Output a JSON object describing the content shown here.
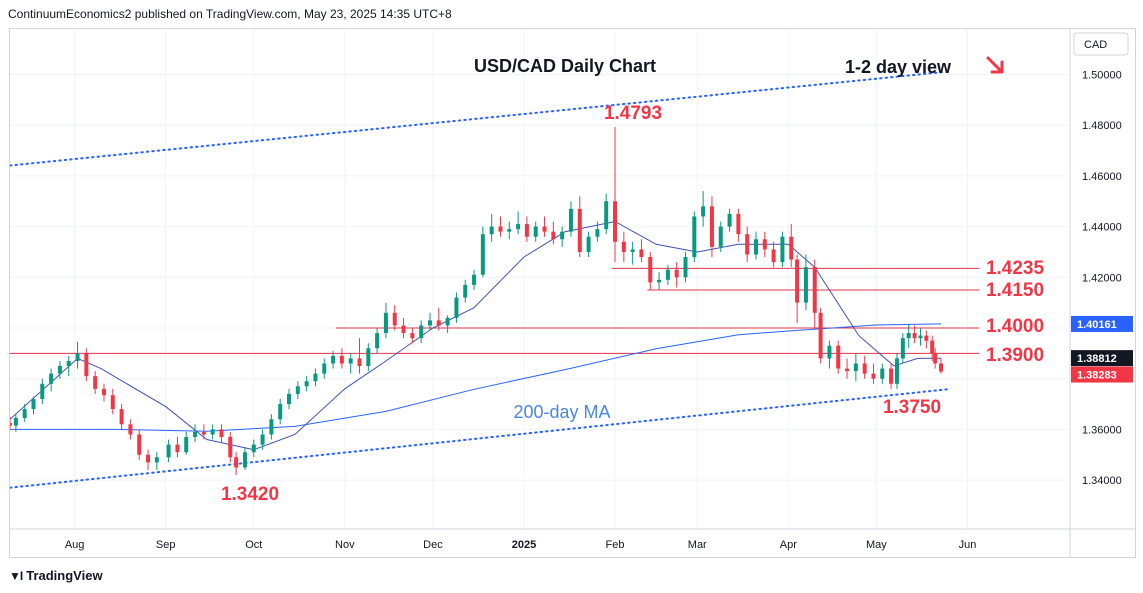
{
  "header": {
    "publisher": "ContinuumEconomics2 published on TradingView.com, May 23, 2025 14:35 UTC+8"
  },
  "footer": {
    "brand": "TradingView"
  },
  "chart_data": {
    "type": "candlestick",
    "title": "USD/CAD Daily Chart",
    "currency": "CAD",
    "view_note": "1-2 day view",
    "view_direction": "down",
    "ylim": [
      1.32,
      1.52
    ],
    "y_ticks": [
      "1.50000",
      "1.48000",
      "1.46000",
      "1.44000",
      "1.42000",
      "1.40000",
      "1.38000",
      "1.36000",
      "1.34000"
    ],
    "x_ticks": [
      "Aug",
      "Sep",
      "Oct",
      "Nov",
      "Dec",
      "2025",
      "Feb",
      "Mar",
      "Apr",
      "May",
      "Jun"
    ],
    "level_labels": [
      {
        "text": "1.4793",
        "value": 1.4793
      },
      {
        "text": "1.4235",
        "value": 1.4235
      },
      {
        "text": "1.4150",
        "value": 1.415
      },
      {
        "text": "1.4000",
        "value": 1.4
      },
      {
        "text": "1.3900",
        "value": 1.39
      },
      {
        "text": "1.3750",
        "value": 1.375
      },
      {
        "text": "1.3420",
        "value": 1.342
      }
    ],
    "ma_label": "200-day MA",
    "price_tags": [
      {
        "text": "1.40161",
        "value": 1.40161,
        "color": "#2962ff"
      },
      {
        "text": "1.38812",
        "value": 1.38812,
        "color": "#131722"
      },
      {
        "text": "1.38283",
        "value": 1.38283,
        "color": "#f23645"
      }
    ],
    "horizontal_lines": [
      {
        "value": 1.4235,
        "from": "2025-01-31",
        "to": "2025-06-05"
      },
      {
        "value": 1.415,
        "from": "2025-02-12",
        "to": "2025-06-05"
      },
      {
        "value": 1.4,
        "from": "2024-10-29",
        "to": "2025-06-05"
      },
      {
        "value": 1.39,
        "from": "2024-07-10",
        "to": "2025-06-05"
      }
    ],
    "channel": {
      "upper": [
        {
          "date": "2024-07-10",
          "value": 1.4641
        },
        {
          "date": "2025-05-24",
          "value": 1.501
        }
      ],
      "lower": [
        {
          "date": "2024-07-10",
          "value": 1.337
        },
        {
          "date": "2025-05-25",
          "value": 1.3758
        }
      ]
    },
    "ma200": [
      {
        "date": "2024-07-10",
        "value": 1.36
      },
      {
        "date": "2024-08-15",
        "value": 1.36
      },
      {
        "date": "2024-09-15",
        "value": 1.3593
      },
      {
        "date": "2024-10-15",
        "value": 1.3612
      },
      {
        "date": "2024-11-15",
        "value": 1.3671
      },
      {
        "date": "2024-12-15",
        "value": 1.3758
      },
      {
        "date": "2025-01-15",
        "value": 1.3836
      },
      {
        "date": "2025-02-15",
        "value": 1.3918
      },
      {
        "date": "2025-03-15",
        "value": 1.3973
      },
      {
        "date": "2025-04-01",
        "value": 1.3988
      },
      {
        "date": "2025-05-01",
        "value": 1.4012
      },
      {
        "date": "2025-05-23",
        "value": 1.4016
      }
    ],
    "ma_short": [
      {
        "date": "2024-07-10",
        "value": 1.364
      },
      {
        "date": "2024-08-02",
        "value": 1.388
      },
      {
        "date": "2024-08-10",
        "value": 1.384
      },
      {
        "date": "2024-09-01",
        "value": 1.369
      },
      {
        "date": "2024-09-15",
        "value": 1.356
      },
      {
        "date": "2024-10-01",
        "value": 1.352
      },
      {
        "date": "2024-10-15",
        "value": 1.358
      },
      {
        "date": "2024-11-01",
        "value": 1.376
      },
      {
        "date": "2024-11-15",
        "value": 1.387
      },
      {
        "date": "2024-12-01",
        "value": 1.4
      },
      {
        "date": "2024-12-15",
        "value": 1.408
      },
      {
        "date": "2025-01-01",
        "value": 1.428
      },
      {
        "date": "2025-01-15",
        "value": 1.438
      },
      {
        "date": "2025-02-01",
        "value": 1.442
      },
      {
        "date": "2025-02-15",
        "value": 1.433
      },
      {
        "date": "2025-03-01",
        "value": 1.43
      },
      {
        "date": "2025-03-15",
        "value": 1.433
      },
      {
        "date": "2025-04-01",
        "value": 1.433
      },
      {
        "date": "2025-04-10",
        "value": 1.424
      },
      {
        "date": "2025-04-25",
        "value": 1.397
      },
      {
        "date": "2025-05-07",
        "value": 1.385
      },
      {
        "date": "2025-05-15",
        "value": 1.388
      },
      {
        "date": "2025-05-23",
        "value": 1.3881
      }
    ],
    "candles": [
      {
        "d": "2024-07-10",
        "o": 1.3625,
        "h": 1.365,
        "l": 1.36,
        "c": 1.3615
      },
      {
        "d": "2024-07-12",
        "o": 1.3615,
        "h": 1.366,
        "l": 1.359,
        "c": 1.3645
      },
      {
        "d": "2024-07-15",
        "o": 1.3645,
        "h": 1.37,
        "l": 1.363,
        "c": 1.368
      },
      {
        "d": "2024-07-18",
        "o": 1.368,
        "h": 1.373,
        "l": 1.366,
        "c": 1.372
      },
      {
        "d": "2024-07-21",
        "o": 1.372,
        "h": 1.38,
        "l": 1.37,
        "c": 1.378
      },
      {
        "d": "2024-07-24",
        "o": 1.378,
        "h": 1.384,
        "l": 1.375,
        "c": 1.382
      },
      {
        "d": "2024-07-27",
        "o": 1.382,
        "h": 1.387,
        "l": 1.38,
        "c": 1.385
      },
      {
        "d": "2024-07-30",
        "o": 1.385,
        "h": 1.389,
        "l": 1.381,
        "c": 1.387
      },
      {
        "d": "2024-08-02",
        "o": 1.387,
        "h": 1.3946,
        "l": 1.384,
        "c": 1.39
      },
      {
        "d": "2024-08-05",
        "o": 1.39,
        "h": 1.392,
        "l": 1.379,
        "c": 1.381
      },
      {
        "d": "2024-08-08",
        "o": 1.381,
        "h": 1.383,
        "l": 1.374,
        "c": 1.376
      },
      {
        "d": "2024-08-11",
        "o": 1.376,
        "h": 1.378,
        "l": 1.371,
        "c": 1.3735
      },
      {
        "d": "2024-08-14",
        "o": 1.3735,
        "h": 1.376,
        "l": 1.366,
        "c": 1.368
      },
      {
        "d": "2024-08-17",
        "o": 1.368,
        "h": 1.37,
        "l": 1.36,
        "c": 1.362
      },
      {
        "d": "2024-08-20",
        "o": 1.362,
        "h": 1.364,
        "l": 1.356,
        "c": 1.358
      },
      {
        "d": "2024-08-23",
        "o": 1.358,
        "h": 1.36,
        "l": 1.348,
        "c": 1.35
      },
      {
        "d": "2024-08-26",
        "o": 1.35,
        "h": 1.352,
        "l": 1.344,
        "c": 1.347
      },
      {
        "d": "2024-08-29",
        "o": 1.347,
        "h": 1.351,
        "l": 1.344,
        "c": 1.349
      },
      {
        "d": "2024-09-02",
        "o": 1.349,
        "h": 1.356,
        "l": 1.347,
        "c": 1.354
      },
      {
        "d": "2024-09-05",
        "o": 1.354,
        "h": 1.357,
        "l": 1.349,
        "c": 1.351
      },
      {
        "d": "2024-09-08",
        "o": 1.351,
        "h": 1.359,
        "l": 1.35,
        "c": 1.357
      },
      {
        "d": "2024-09-11",
        "o": 1.357,
        "h": 1.362,
        "l": 1.355,
        "c": 1.359
      },
      {
        "d": "2024-09-14",
        "o": 1.359,
        "h": 1.362,
        "l": 1.356,
        "c": 1.358
      },
      {
        "d": "2024-09-17",
        "o": 1.358,
        "h": 1.362,
        "l": 1.356,
        "c": 1.36
      },
      {
        "d": "2024-09-20",
        "o": 1.36,
        "h": 1.362,
        "l": 1.355,
        "c": 1.357
      },
      {
        "d": "2024-09-23",
        "o": 1.357,
        "h": 1.359,
        "l": 1.347,
        "c": 1.349
      },
      {
        "d": "2024-09-25",
        "o": 1.349,
        "h": 1.351,
        "l": 1.342,
        "c": 1.345
      },
      {
        "d": "2024-09-28",
        "o": 1.345,
        "h": 1.353,
        "l": 1.344,
        "c": 1.351
      },
      {
        "d": "2024-10-01",
        "o": 1.351,
        "h": 1.356,
        "l": 1.349,
        "c": 1.354
      },
      {
        "d": "2024-10-04",
        "o": 1.354,
        "h": 1.36,
        "l": 1.352,
        "c": 1.358
      },
      {
        "d": "2024-10-07",
        "o": 1.358,
        "h": 1.366,
        "l": 1.356,
        "c": 1.364
      },
      {
        "d": "2024-10-10",
        "o": 1.364,
        "h": 1.372,
        "l": 1.362,
        "c": 1.37
      },
      {
        "d": "2024-10-13",
        "o": 1.37,
        "h": 1.376,
        "l": 1.368,
        "c": 1.374
      },
      {
        "d": "2024-10-16",
        "o": 1.374,
        "h": 1.379,
        "l": 1.372,
        "c": 1.377
      },
      {
        "d": "2024-10-19",
        "o": 1.377,
        "h": 1.381,
        "l": 1.375,
        "c": 1.379
      },
      {
        "d": "2024-10-22",
        "o": 1.379,
        "h": 1.384,
        "l": 1.377,
        "c": 1.382
      },
      {
        "d": "2024-10-25",
        "o": 1.382,
        "h": 1.388,
        "l": 1.38,
        "c": 1.386
      },
      {
        "d": "2024-10-28",
        "o": 1.386,
        "h": 1.391,
        "l": 1.384,
        "c": 1.389
      },
      {
        "d": "2024-10-31",
        "o": 1.389,
        "h": 1.392,
        "l": 1.384,
        "c": 1.386
      },
      {
        "d": "2024-11-03",
        "o": 1.386,
        "h": 1.39,
        "l": 1.382,
        "c": 1.388
      },
      {
        "d": "2024-11-06",
        "o": 1.388,
        "h": 1.396,
        "l": 1.382,
        "c": 1.385
      },
      {
        "d": "2024-11-09",
        "o": 1.385,
        "h": 1.394,
        "l": 1.383,
        "c": 1.392
      },
      {
        "d": "2024-11-12",
        "o": 1.392,
        "h": 1.4,
        "l": 1.39,
        "c": 1.398
      },
      {
        "d": "2024-11-15",
        "o": 1.398,
        "h": 1.41,
        "l": 1.396,
        "c": 1.406
      },
      {
        "d": "2024-11-18",
        "o": 1.406,
        "h": 1.409,
        "l": 1.399,
        "c": 1.401
      },
      {
        "d": "2024-11-21",
        "o": 1.401,
        "h": 1.404,
        "l": 1.396,
        "c": 1.398
      },
      {
        "d": "2024-11-24",
        "o": 1.398,
        "h": 1.4,
        "l": 1.394,
        "c": 1.396
      },
      {
        "d": "2024-11-27",
        "o": 1.396,
        "h": 1.403,
        "l": 1.394,
        "c": 1.401
      },
      {
        "d": "2024-11-30",
        "o": 1.401,
        "h": 1.406,
        "l": 1.399,
        "c": 1.403
      },
      {
        "d": "2024-12-03",
        "o": 1.403,
        "h": 1.408,
        "l": 1.399,
        "c": 1.401
      },
      {
        "d": "2024-12-06",
        "o": 1.401,
        "h": 1.405,
        "l": 1.398,
        "c": 1.404
      },
      {
        "d": "2024-12-09",
        "o": 1.404,
        "h": 1.414,
        "l": 1.402,
        "c": 1.412
      },
      {
        "d": "2024-12-12",
        "o": 1.412,
        "h": 1.419,
        "l": 1.41,
        "c": 1.417
      },
      {
        "d": "2024-12-15",
        "o": 1.417,
        "h": 1.423,
        "l": 1.415,
        "c": 1.421
      },
      {
        "d": "2024-12-18",
        "o": 1.421,
        "h": 1.44,
        "l": 1.42,
        "c": 1.437
      },
      {
        "d": "2024-12-21",
        "o": 1.437,
        "h": 1.445,
        "l": 1.434,
        "c": 1.44
      },
      {
        "d": "2024-12-24",
        "o": 1.44,
        "h": 1.444,
        "l": 1.436,
        "c": 1.438
      },
      {
        "d": "2024-12-27",
        "o": 1.438,
        "h": 1.442,
        "l": 1.435,
        "c": 1.439
      },
      {
        "d": "2024-12-30",
        "o": 1.439,
        "h": 1.446,
        "l": 1.437,
        "c": 1.441
      },
      {
        "d": "2025-01-02",
        "o": 1.441,
        "h": 1.444,
        "l": 1.434,
        "c": 1.436
      },
      {
        "d": "2025-01-05",
        "o": 1.436,
        "h": 1.442,
        "l": 1.434,
        "c": 1.44
      },
      {
        "d": "2025-01-08",
        "o": 1.44,
        "h": 1.444,
        "l": 1.436,
        "c": 1.438
      },
      {
        "d": "2025-01-11",
        "o": 1.438,
        "h": 1.442,
        "l": 1.433,
        "c": 1.435
      },
      {
        "d": "2025-01-14",
        "o": 1.435,
        "h": 1.44,
        "l": 1.432,
        "c": 1.438
      },
      {
        "d": "2025-01-17",
        "o": 1.438,
        "h": 1.45,
        "l": 1.436,
        "c": 1.447
      },
      {
        "d": "2025-01-20",
        "o": 1.447,
        "h": 1.452,
        "l": 1.428,
        "c": 1.43
      },
      {
        "d": "2025-01-23",
        "o": 1.43,
        "h": 1.438,
        "l": 1.428,
        "c": 1.436
      },
      {
        "d": "2025-01-26",
        "o": 1.436,
        "h": 1.442,
        "l": 1.434,
        "c": 1.439
      },
      {
        "d": "2025-01-29",
        "o": 1.439,
        "h": 1.453,
        "l": 1.437,
        "c": 1.45
      },
      {
        "d": "2025-02-01",
        "o": 1.45,
        "h": 1.4793,
        "l": 1.426,
        "c": 1.434
      },
      {
        "d": "2025-02-04",
        "o": 1.434,
        "h": 1.438,
        "l": 1.426,
        "c": 1.43
      },
      {
        "d": "2025-02-07",
        "o": 1.43,
        "h": 1.434,
        "l": 1.425,
        "c": 1.431
      },
      {
        "d": "2025-02-10",
        "o": 1.431,
        "h": 1.435,
        "l": 1.426,
        "c": 1.428
      },
      {
        "d": "2025-02-13",
        "o": 1.428,
        "h": 1.43,
        "l": 1.415,
        "c": 1.418
      },
      {
        "d": "2025-02-16",
        "o": 1.418,
        "h": 1.422,
        "l": 1.415,
        "c": 1.419
      },
      {
        "d": "2025-02-19",
        "o": 1.419,
        "h": 1.425,
        "l": 1.417,
        "c": 1.423
      },
      {
        "d": "2025-02-22",
        "o": 1.423,
        "h": 1.426,
        "l": 1.416,
        "c": 1.42
      },
      {
        "d": "2025-02-25",
        "o": 1.42,
        "h": 1.43,
        "l": 1.418,
        "c": 1.428
      },
      {
        "d": "2025-02-28",
        "o": 1.428,
        "h": 1.446,
        "l": 1.426,
        "c": 1.444
      },
      {
        "d": "2025-03-03",
        "o": 1.444,
        "h": 1.454,
        "l": 1.44,
        "c": 1.448
      },
      {
        "d": "2025-03-06",
        "o": 1.448,
        "h": 1.452,
        "l": 1.428,
        "c": 1.432
      },
      {
        "d": "2025-03-09",
        "o": 1.432,
        "h": 1.442,
        "l": 1.43,
        "c": 1.44
      },
      {
        "d": "2025-03-12",
        "o": 1.44,
        "h": 1.447,
        "l": 1.438,
        "c": 1.445
      },
      {
        "d": "2025-03-15",
        "o": 1.445,
        "h": 1.447,
        "l": 1.434,
        "c": 1.437
      },
      {
        "d": "2025-03-18",
        "o": 1.437,
        "h": 1.44,
        "l": 1.426,
        "c": 1.429
      },
      {
        "d": "2025-03-21",
        "o": 1.429,
        "h": 1.438,
        "l": 1.427,
        "c": 1.435
      },
      {
        "d": "2025-03-24",
        "o": 1.435,
        "h": 1.438,
        "l": 1.428,
        "c": 1.431
      },
      {
        "d": "2025-03-27",
        "o": 1.431,
        "h": 1.434,
        "l": 1.424,
        "c": 1.426
      },
      {
        "d": "2025-03-30",
        "o": 1.426,
        "h": 1.438,
        "l": 1.424,
        "c": 1.436
      },
      {
        "d": "2025-04-02",
        "o": 1.436,
        "h": 1.441,
        "l": 1.424,
        "c": 1.427
      },
      {
        "d": "2025-04-04",
        "o": 1.427,
        "h": 1.429,
        "l": 1.402,
        "c": 1.41
      },
      {
        "d": "2025-04-07",
        "o": 1.41,
        "h": 1.429,
        "l": 1.407,
        "c": 1.424
      },
      {
        "d": "2025-04-10",
        "o": 1.424,
        "h": 1.427,
        "l": 1.4,
        "c": 1.406
      },
      {
        "d": "2025-04-12",
        "o": 1.406,
        "h": 1.408,
        "l": 1.386,
        "c": 1.388
      },
      {
        "d": "2025-04-15",
        "o": 1.388,
        "h": 1.395,
        "l": 1.384,
        "c": 1.393
      },
      {
        "d": "2025-04-18",
        "o": 1.393,
        "h": 1.395,
        "l": 1.382,
        "c": 1.384
      },
      {
        "d": "2025-04-21",
        "o": 1.384,
        "h": 1.388,
        "l": 1.38,
        "c": 1.383
      },
      {
        "d": "2025-04-24",
        "o": 1.383,
        "h": 1.39,
        "l": 1.379,
        "c": 1.386
      },
      {
        "d": "2025-04-27",
        "o": 1.386,
        "h": 1.389,
        "l": 1.38,
        "c": 1.382
      },
      {
        "d": "2025-04-30",
        "o": 1.382,
        "h": 1.386,
        "l": 1.378,
        "c": 1.38
      },
      {
        "d": "2025-05-03",
        "o": 1.38,
        "h": 1.386,
        "l": 1.378,
        "c": 1.384
      },
      {
        "d": "2025-05-06",
        "o": 1.384,
        "h": 1.386,
        "l": 1.376,
        "c": 1.378
      },
      {
        "d": "2025-05-08",
        "o": 1.378,
        "h": 1.39,
        "l": 1.376,
        "c": 1.388
      },
      {
        "d": "2025-05-10",
        "o": 1.388,
        "h": 1.398,
        "l": 1.386,
        "c": 1.396
      },
      {
        "d": "2025-05-12",
        "o": 1.396,
        "h": 1.4016,
        "l": 1.392,
        "c": 1.398
      },
      {
        "d": "2025-05-14",
        "o": 1.398,
        "h": 1.401,
        "l": 1.394,
        "c": 1.396
      },
      {
        "d": "2025-05-16",
        "o": 1.396,
        "h": 1.4,
        "l": 1.393,
        "c": 1.397
      },
      {
        "d": "2025-05-18",
        "o": 1.397,
        "h": 1.399,
        "l": 1.392,
        "c": 1.395
      },
      {
        "d": "2025-05-20",
        "o": 1.395,
        "h": 1.397,
        "l": 1.387,
        "c": 1.39
      },
      {
        "d": "2025-05-21",
        "o": 1.39,
        "h": 1.392,
        "l": 1.384,
        "c": 1.386
      },
      {
        "d": "2025-05-23",
        "o": 1.386,
        "h": 1.388,
        "l": 1.382,
        "c": 1.3828
      }
    ]
  }
}
